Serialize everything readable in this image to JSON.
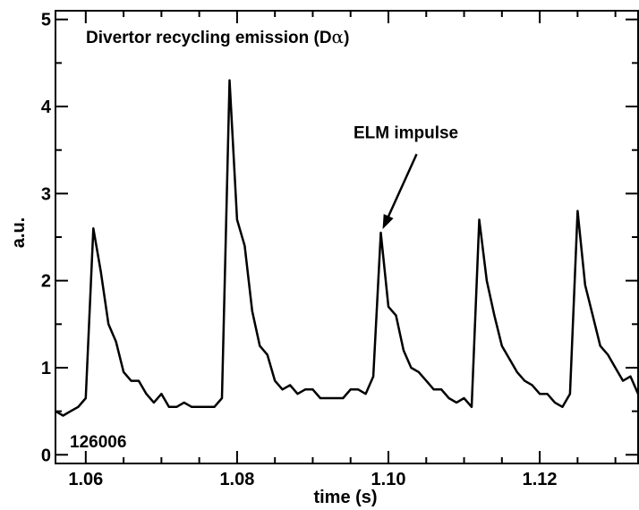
{
  "chart_data": {
    "type": "line",
    "title": "Divertor recycling emission (D",
    "title_symbol": "α",
    "title_close": ")",
    "xlabel": "time (s)",
    "ylabel": "a.u.",
    "xlim": [
      1.056,
      1.133
    ],
    "ylim": [
      -0.1,
      5.1
    ],
    "x_ticks": [
      1.06,
      1.08,
      1.1,
      1.12
    ],
    "x_tick_labels": [
      "1.06",
      "1.08",
      "1.10",
      "1.12"
    ],
    "y_ticks": [
      0,
      1,
      2,
      3,
      4,
      5
    ],
    "y_tick_labels": [
      "0",
      "1",
      "2",
      "3",
      "4",
      "5"
    ],
    "shot_label": "126006",
    "annotation": {
      "text": "ELM impulse",
      "x": 1.099,
      "y": 2.55,
      "text_x": 1.099,
      "text_y": 3.35
    },
    "series": [
      {
        "x": [
          1.056,
          1.057,
          1.058,
          1.059,
          1.06,
          1.061,
          1.062,
          1.063,
          1.064,
          1.065,
          1.066,
          1.067,
          1.068,
          1.069,
          1.07,
          1.071,
          1.072,
          1.073,
          1.074,
          1.075,
          1.076,
          1.077,
          1.078,
          1.079,
          1.08,
          1.081,
          1.082,
          1.083,
          1.084,
          1.085,
          1.086,
          1.087,
          1.088,
          1.089,
          1.09,
          1.091,
          1.092,
          1.093,
          1.094,
          1.095,
          1.096,
          1.097,
          1.098,
          1.099,
          1.1,
          1.101,
          1.102,
          1.103,
          1.104,
          1.105,
          1.106,
          1.107,
          1.108,
          1.109,
          1.11,
          1.111,
          1.112,
          1.113,
          1.114,
          1.115,
          1.116,
          1.117,
          1.118,
          1.119,
          1.12,
          1.121,
          1.122,
          1.123,
          1.124,
          1.125,
          1.126,
          1.127,
          1.128,
          1.129,
          1.13,
          1.131,
          1.132,
          1.133
        ],
        "y": [
          0.5,
          0.45,
          0.5,
          0.55,
          0.65,
          2.6,
          2.1,
          1.5,
          1.3,
          0.95,
          0.85,
          0.85,
          0.7,
          0.6,
          0.7,
          0.55,
          0.55,
          0.6,
          0.55,
          0.55,
          0.55,
          0.55,
          0.65,
          4.3,
          2.7,
          2.4,
          1.65,
          1.25,
          1.15,
          0.85,
          0.75,
          0.8,
          0.7,
          0.75,
          0.75,
          0.65,
          0.65,
          0.65,
          0.65,
          0.75,
          0.75,
          0.7,
          0.9,
          2.55,
          1.7,
          1.6,
          1.2,
          1.0,
          0.95,
          0.85,
          0.75,
          0.75,
          0.65,
          0.6,
          0.65,
          0.55,
          2.7,
          2.0,
          1.6,
          1.25,
          1.1,
          0.95,
          0.85,
          0.8,
          0.7,
          0.7,
          0.6,
          0.55,
          0.7,
          2.8,
          1.95,
          1.6,
          1.25,
          1.15,
          1.0,
          0.85,
          0.9,
          0.7
        ]
      }
    ]
  }
}
